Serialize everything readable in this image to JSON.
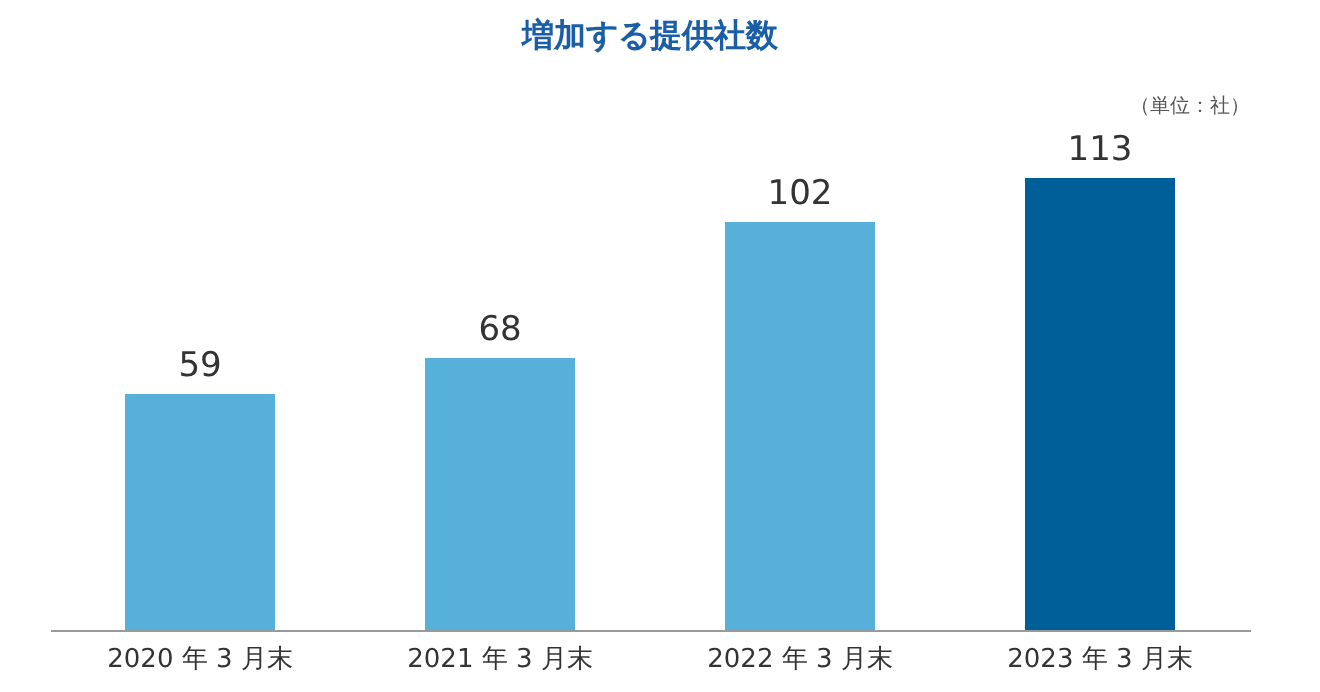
{
  "chart_data": {
    "type": "bar",
    "title": "増加する提供社数",
    "annotations": [
      "（単位：社）"
    ],
    "categories": [
      "2020 年 3 月末",
      "2021 年 3 月末",
      "2022 年 3 月末",
      "2023 年 3 月末"
    ],
    "values": [
      59,
      68,
      102,
      113
    ],
    "colors": [
      "#56b0d9",
      "#56b0d9",
      "#56b0d9",
      "#005f99"
    ],
    "data_labels": true,
    "grid": false,
    "tick_labels": "x"
  }
}
